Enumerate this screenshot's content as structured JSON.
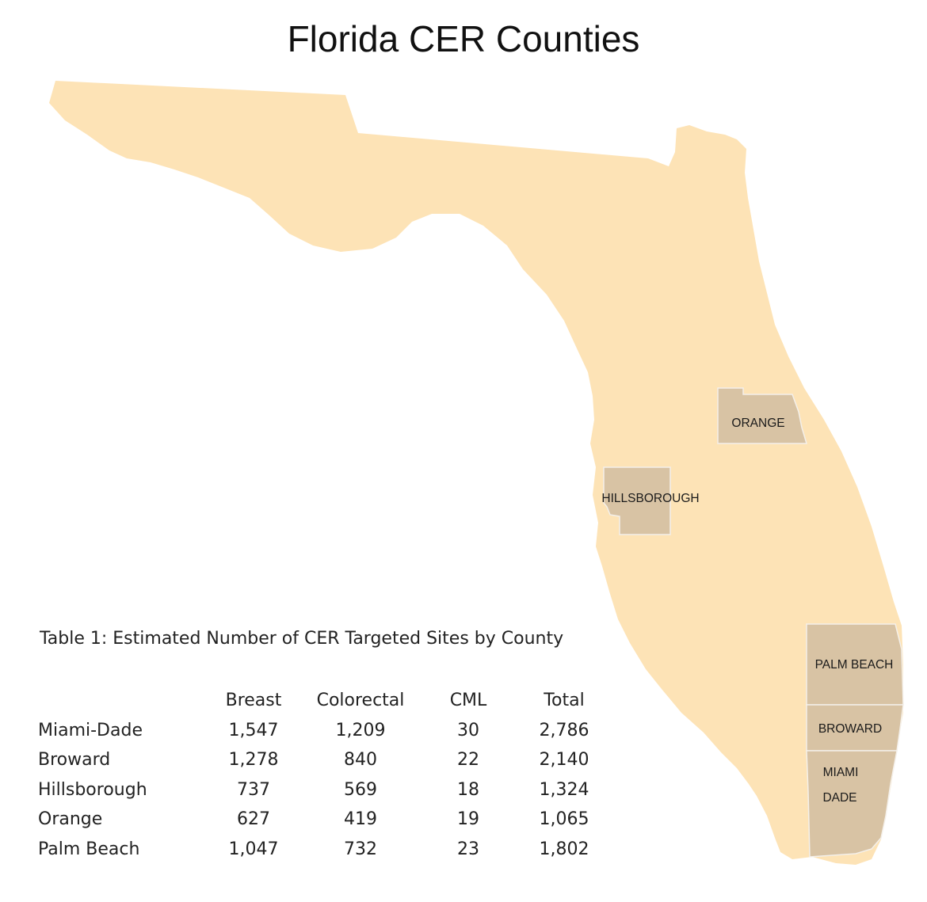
{
  "title": "Florida CER Counties",
  "colors": {
    "state_fill": "#fde3b6",
    "county_fill": "#d8c3a4",
    "county_stroke": "#f4f0ea",
    "background": "#ffffff"
  },
  "map": {
    "counties": [
      {
        "id": "orange",
        "label_lines": [
          "ORANGE"
        ]
      },
      {
        "id": "hillsborough",
        "label_lines": [
          "HILLSBOROUGH"
        ]
      },
      {
        "id": "palm-beach",
        "label_lines": [
          "PALM BEACH"
        ]
      },
      {
        "id": "broward",
        "label_lines": [
          "BROWARD"
        ]
      },
      {
        "id": "miami-dade",
        "label_lines": [
          "MIAMI",
          "DADE"
        ]
      }
    ]
  },
  "table": {
    "caption": "Table 1: Estimated Number of CER Targeted Sites by County",
    "headers": [
      "",
      "Breast",
      "Colorectal",
      "CML",
      "Total"
    ],
    "rows": [
      [
        "Miami-Dade",
        "1,547",
        "1,209",
        "30",
        "2,786"
      ],
      [
        "Broward",
        "1,278",
        "840",
        "22",
        "2,140"
      ],
      [
        "Hillsborough",
        "737",
        "569",
        "18",
        "1,324"
      ],
      [
        "Orange",
        "627",
        "419",
        "19",
        "1,065"
      ],
      [
        "Palm Beach",
        "1,047",
        "732",
        "23",
        "1,802"
      ]
    ]
  }
}
